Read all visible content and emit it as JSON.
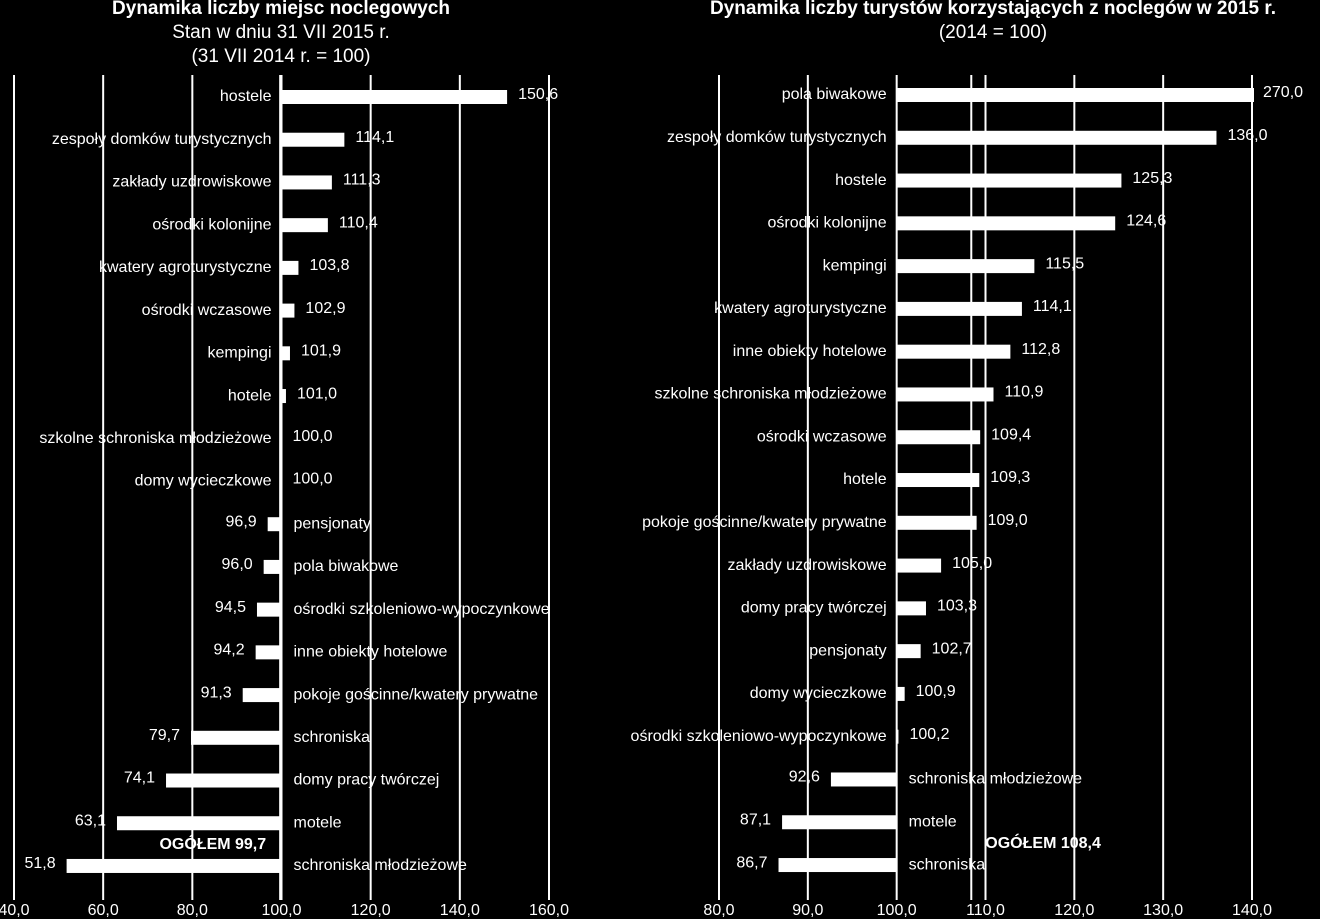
{
  "chart_data": [
    {
      "type": "bar",
      "orientation": "horizontal",
      "title": "Dynamika liczby miejsc noclegowych",
      "subtitle": [
        "Stan w dniu 31 VII 2015 r.",
        "(31 VII 2014 r. = 100)"
      ],
      "baseline": 100,
      "color": "#ffffff",
      "grid": true,
      "categories": [
        "hostele",
        "zespoły domków turystycznych",
        "zakłady uzdrowiskowe",
        "ośrodki kolonijne",
        "kwatery agroturystyczne",
        "ośrodki wczasowe",
        "kempingi",
        "hotele",
        "szkolne schroniska młodzieżowe",
        "domy wycieczkowe",
        "pensjonaty",
        "pola biwakowe",
        "ośrodki szkoleniowo-wypoczynkowe",
        "inne obiekty hotelowe",
        "pokoje gościnne/kwatery prywatne",
        "schroniska",
        "domy pracy twórczej",
        "motele",
        "schroniska młodzieżowe"
      ],
      "values": [
        150.6,
        114.1,
        111.3,
        110.4,
        103.8,
        102.9,
        101.9,
        101.0,
        100.0,
        100.0,
        96.9,
        96.0,
        94.5,
        94.2,
        91.3,
        79.7,
        74.1,
        63.1,
        51.8
      ],
      "value_labels": [
        "150,6",
        "114,1",
        "111,3",
        "110,4",
        "103,8",
        "102,9",
        "101,9",
        "101,0",
        "100,0",
        "100,0",
        "96,9",
        "96,0",
        "94,5",
        "94,2",
        "91,3",
        "79,7",
        "74,1",
        "63,1",
        "51,8"
      ],
      "xlim": [
        40,
        160
      ],
      "xticks": [
        {
          "value": 40,
          "label": "40,0"
        },
        {
          "value": 60,
          "label": "60,0"
        },
        {
          "value": 80,
          "label": "80,0"
        },
        {
          "value": 100,
          "label": "100,0"
        },
        {
          "value": 120,
          "label": "120,0"
        },
        {
          "value": 140,
          "label": "140,0"
        },
        {
          "value": 160,
          "label": "160,0"
        }
      ],
      "reference": {
        "value": 99.7,
        "label": "OGÓŁEM 99,7"
      }
    },
    {
      "type": "bar",
      "orientation": "horizontal",
      "title": "Dynamika liczby turystów korzystających z noclegów w 2015 r.",
      "subtitle": [
        "(2014 = 100)"
      ],
      "baseline": 100,
      "color": "#ffffff",
      "grid": true,
      "categories": [
        "pola biwakowe",
        "zespoły domków turystycznych",
        "hostele",
        "ośrodki kolonijne",
        "kempingi",
        "kwatery agroturystyczne",
        "inne obiekty hotelowe",
        "szkolne schroniska młodzieżowe",
        "ośrodki wczasowe",
        "hotele",
        "pokoje gościnne/kwatery prywatne",
        "zakłady uzdrowiskowe",
        "domy pracy twórczej",
        "pensjonaty",
        "domy wycieczkowe",
        "ośrodki szkoleniowo-wypoczynkowe",
        "schroniska młodzieżowe",
        "motele",
        "schroniska"
      ],
      "values": [
        270.0,
        136.0,
        125.3,
        124.6,
        115.5,
        114.1,
        112.8,
        110.9,
        109.4,
        109.3,
        109.0,
        105.0,
        103.3,
        102.7,
        100.9,
        100.2,
        92.6,
        87.1,
        86.7
      ],
      "value_labels": [
        "270,0",
        "136,0",
        "125,3",
        "124,6",
        "115,5",
        "114,1",
        "112,8",
        "110,9",
        "109,4",
        "109,3",
        "109,0",
        "105,0",
        "103,3",
        "102,7",
        "100,9",
        "100,2",
        "92,6",
        "87,1",
        "86,7"
      ],
      "xlim": [
        80,
        140
      ],
      "xticks": [
        {
          "value": 80,
          "label": "80,0"
        },
        {
          "value": 90,
          "label": "90,0"
        },
        {
          "value": 100,
          "label": "100,0"
        },
        {
          "value": 110,
          "label": "110,0"
        },
        {
          "value": 120,
          "label": "120,0"
        },
        {
          "value": 130,
          "label": "130,0"
        },
        {
          "value": 140,
          "label": "140,0"
        }
      ],
      "reference": {
        "value": 108.4,
        "label": "OGÓŁEM 108,4"
      }
    }
  ]
}
